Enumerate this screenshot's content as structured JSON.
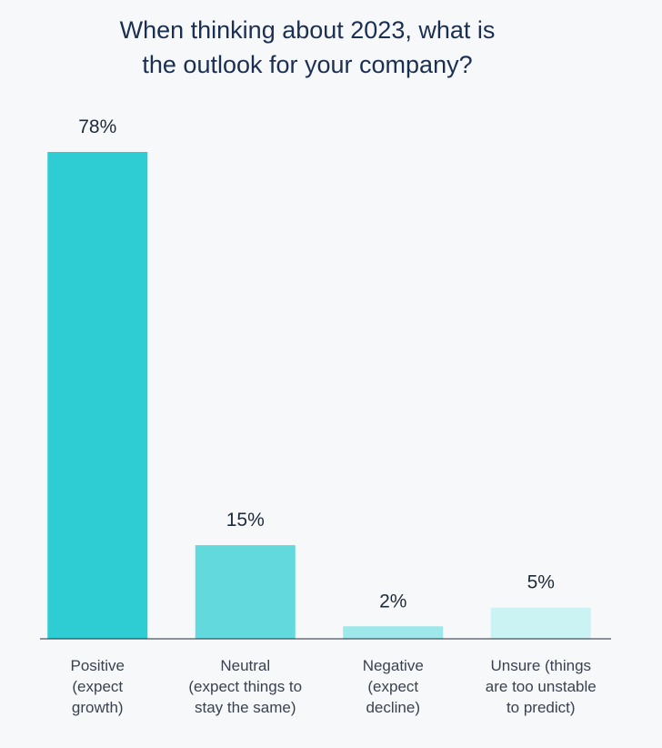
{
  "chart_data": {
    "type": "bar",
    "title_lines": [
      "When thinking about 2023, what is",
      "the outlook for your company?"
    ],
    "categories": [
      [
        "Positive",
        "(expect",
        "growth)"
      ],
      [
        "Neutral",
        "(expect things to",
        "stay the same)"
      ],
      [
        "Negative",
        "(expect",
        "decline)"
      ],
      [
        "Unsure (things",
        "are too unstable",
        "to predict)"
      ]
    ],
    "values": [
      78,
      15,
      2,
      5
    ],
    "value_labels": [
      "78%",
      "15%",
      "2%",
      "5%"
    ],
    "bar_colors": [
      "#2ecdd4",
      "#62d9dd",
      "#9ee7ea",
      "#ccf3f4"
    ],
    "ylim": [
      0,
      78
    ],
    "grid": false,
    "legend": "none"
  }
}
